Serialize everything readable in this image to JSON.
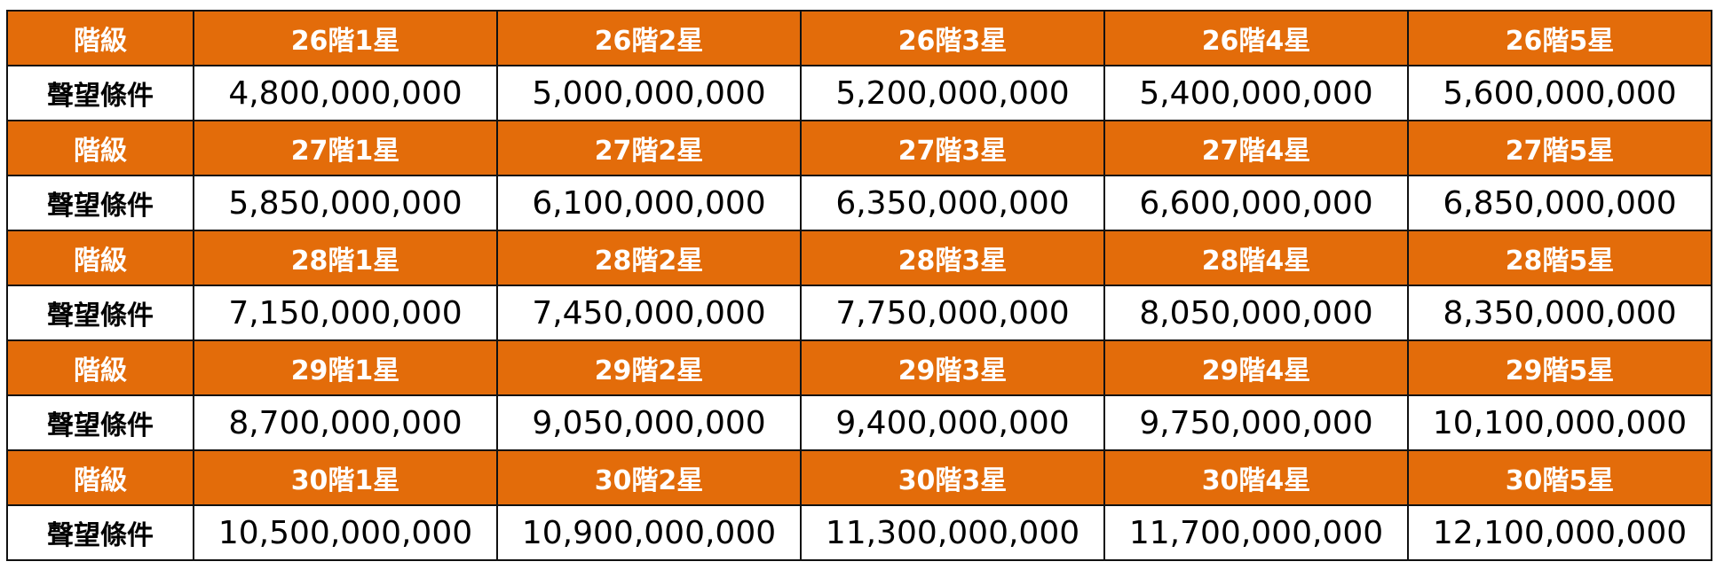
{
  "table": {
    "header_row_label": "階級",
    "value_row_label": "聲望條件",
    "header_bg_color": "#E36C0A",
    "groups": [
      {
        "levels": [
          "26階1星",
          "26階2星",
          "26階3星",
          "26階4星",
          "26階5星"
        ],
        "values": [
          "4,800,000,000",
          "5,000,000,000",
          "5,200,000,000",
          "5,400,000,000",
          "5,600,000,000"
        ]
      },
      {
        "levels": [
          "27階1星",
          "27階2星",
          "27階3星",
          "27階4星",
          "27階5星"
        ],
        "values": [
          "5,850,000,000",
          "6,100,000,000",
          "6,350,000,000",
          "6,600,000,000",
          "6,850,000,000"
        ]
      },
      {
        "levels": [
          "28階1星",
          "28階2星",
          "28階3星",
          "28階4星",
          "28階5星"
        ],
        "values": [
          "7,150,000,000",
          "7,450,000,000",
          "7,750,000,000",
          "8,050,000,000",
          "8,350,000,000"
        ]
      },
      {
        "levels": [
          "29階1星",
          "29階2星",
          "29階3星",
          "29階4星",
          "29階5星"
        ],
        "values": [
          "8,700,000,000",
          "9,050,000,000",
          "9,400,000,000",
          "9,750,000,000",
          "10,100,000,000"
        ]
      },
      {
        "levels": [
          "30階1星",
          "30階2星",
          "30階3星",
          "30階4星",
          "30階5星"
        ],
        "values": [
          "10,500,000,000",
          "10,900,000,000",
          "11,300,000,000",
          "11,700,000,000",
          "12,100,000,000"
        ]
      }
    ]
  }
}
